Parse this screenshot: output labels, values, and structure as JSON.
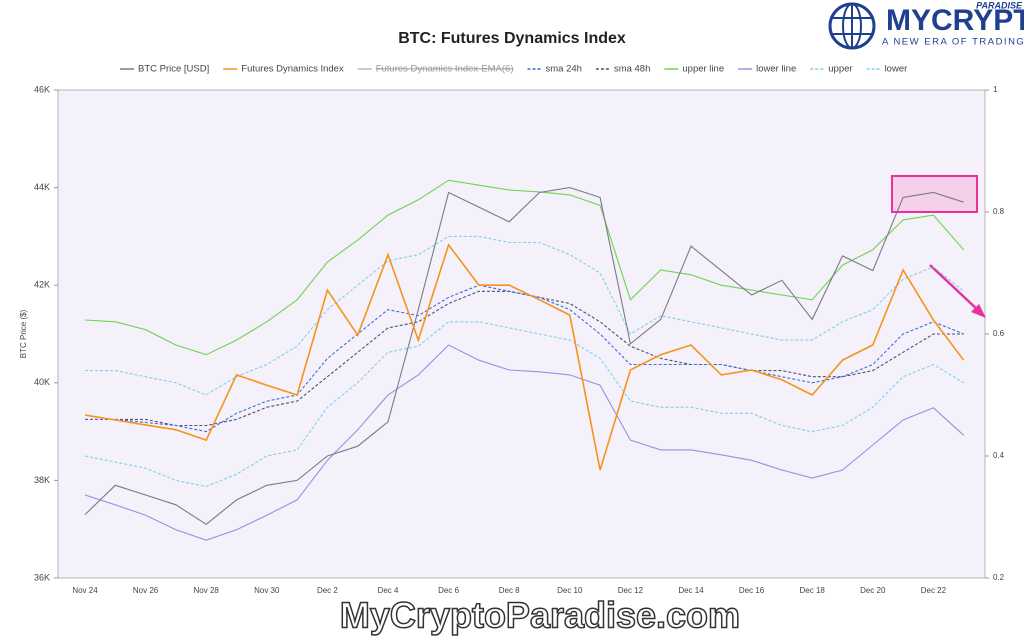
{
  "chart_data": {
    "type": "line",
    "title": "BTC: Futures Dynamics Index",
    "ylabel": "BTC Price ($)",
    "categories": [
      "Nov 24",
      null,
      "Nov 26",
      null,
      "Nov 28",
      null,
      "Nov 30",
      null,
      "Dec 2",
      null,
      "Dec 4",
      null,
      "Dec 6",
      null,
      "Dec 8",
      null,
      "Dec 10",
      null,
      "Dec 12",
      null,
      "Dec 14",
      null,
      "Dec 16",
      null,
      "Dec 18",
      null,
      "Dec 20",
      null,
      "Dec 22",
      null
    ],
    "ylim": [
      36000,
      46000
    ],
    "yticks": [
      {
        "value": 36000,
        "label": "36K"
      },
      {
        "value": 38000,
        "label": "38K"
      },
      {
        "value": 40000,
        "label": "40K"
      },
      {
        "value": 42000,
        "label": "42K"
      },
      {
        "value": 44000,
        "label": "44K"
      },
      {
        "value": 46000,
        "label": "46K"
      }
    ],
    "y2lim": [
      0.2,
      1
    ],
    "y2ticks": [
      0.2,
      0.4,
      0.6,
      0.8,
      1
    ],
    "grid": false,
    "legend": "top",
    "series": [
      {
        "name": "BTC Price [USD]",
        "color": "#7a7a86",
        "values": [
          37300,
          37900,
          37700,
          37500,
          37100,
          37600,
          37900,
          38000,
          38500,
          38700,
          39200,
          41500,
          43900,
          43600,
          43300,
          43900,
          44000,
          43800,
          40800,
          41300,
          42800,
          42300,
          41800,
          42100,
          41300,
          42600,
          42300,
          43800,
          43900,
          43700
        ]
      },
      {
        "name": "Futures Dynamics Index",
        "color": "#f7931a",
        "axis": "y2",
        "values": [
          0.467,
          0.459,
          0.451,
          0.443,
          0.426,
          0.533,
          0.516,
          0.5,
          0.672,
          0.598,
          0.73,
          0.59,
          0.746,
          0.68,
          0.68,
          0.656,
          0.631,
          0.377,
          0.541,
          0.566,
          0.582,
          0.533,
          0.541,
          0.525,
          0.5,
          0.557,
          0.582,
          0.705,
          0.623,
          0.557
        ]
      },
      {
        "name": "Futures Dynamics Index-EMA(6)",
        "color": "#b8b8c4",
        "axis": "y2",
        "hidden": true
      },
      {
        "name": "sma 24h",
        "color": "#3a6fd8",
        "axis": "y2",
        "dash": true,
        "values": [
          0.46,
          0.46,
          0.455,
          0.45,
          0.44,
          0.47,
          0.49,
          0.5,
          0.56,
          0.6,
          0.64,
          0.63,
          0.66,
          0.68,
          0.67,
          0.66,
          0.64,
          0.6,
          0.55,
          0.55,
          0.55,
          0.55,
          0.54,
          0.53,
          0.52,
          0.53,
          0.55,
          0.6,
          0.62,
          0.6
        ]
      },
      {
        "name": "sma 48h",
        "color": "#505070",
        "axis": "y2",
        "dash": true,
        "values": [
          0.46,
          0.46,
          0.46,
          0.45,
          0.45,
          0.46,
          0.48,
          0.49,
          0.53,
          0.57,
          0.61,
          0.62,
          0.65,
          0.67,
          0.67,
          0.66,
          0.65,
          0.62,
          0.58,
          0.56,
          0.55,
          0.55,
          0.54,
          0.54,
          0.53,
          0.53,
          0.54,
          0.57,
          0.6,
          0.6
        ]
      },
      {
        "name": "upper line",
        "color": "#6fd34f",
        "axis": "y2",
        "values": [
          0.623,
          0.62,
          0.607,
          0.582,
          0.566,
          0.59,
          0.62,
          0.656,
          0.718,
          0.754,
          0.795,
          0.82,
          0.852,
          0.844,
          0.836,
          0.833,
          0.828,
          0.811,
          0.656,
          0.705,
          0.697,
          0.68,
          0.672,
          0.664,
          0.656,
          0.713,
          0.738,
          0.787,
          0.795,
          0.738
        ]
      },
      {
        "name": "lower line",
        "color": "#9d8de0",
        "axis": "y2",
        "values": [
          0.336,
          0.32,
          0.303,
          0.279,
          0.262,
          0.279,
          0.303,
          0.328,
          0.393,
          0.443,
          0.5,
          0.533,
          0.582,
          0.557,
          0.541,
          0.538,
          0.533,
          0.516,
          0.426,
          0.41,
          0.41,
          0.402,
          0.393,
          0.377,
          0.364,
          0.377,
          0.418,
          0.459,
          0.479,
          0.434
        ]
      },
      {
        "name": "upper",
        "color": "#7fd0ee",
        "axis": "y2",
        "dash": true,
        "values": [
          0.54,
          0.54,
          0.53,
          0.52,
          0.5,
          0.53,
          0.55,
          0.58,
          0.64,
          0.68,
          0.72,
          0.73,
          0.76,
          0.76,
          0.75,
          0.75,
          0.73,
          0.7,
          0.6,
          0.63,
          0.62,
          0.61,
          0.6,
          0.59,
          0.59,
          0.62,
          0.64,
          0.69,
          0.71,
          0.67
        ]
      },
      {
        "name": "lower",
        "color": "#7fd0ee",
        "axis": "y2",
        "dash": true,
        "values": [
          0.4,
          0.39,
          0.38,
          0.36,
          0.35,
          0.37,
          0.4,
          0.41,
          0.48,
          0.52,
          0.57,
          0.58,
          0.62,
          0.62,
          0.61,
          0.6,
          0.59,
          0.56,
          0.49,
          0.48,
          0.48,
          0.47,
          0.47,
          0.45,
          0.44,
          0.45,
          0.48,
          0.53,
          0.55,
          0.52
        ]
      }
    ]
  },
  "logo": {
    "name": "MYCRYPTO",
    "tag": "PARADISE",
    "tagline": "A NEW ERA OF TRADING"
  },
  "watermark": "MyCryptoParadise.com"
}
